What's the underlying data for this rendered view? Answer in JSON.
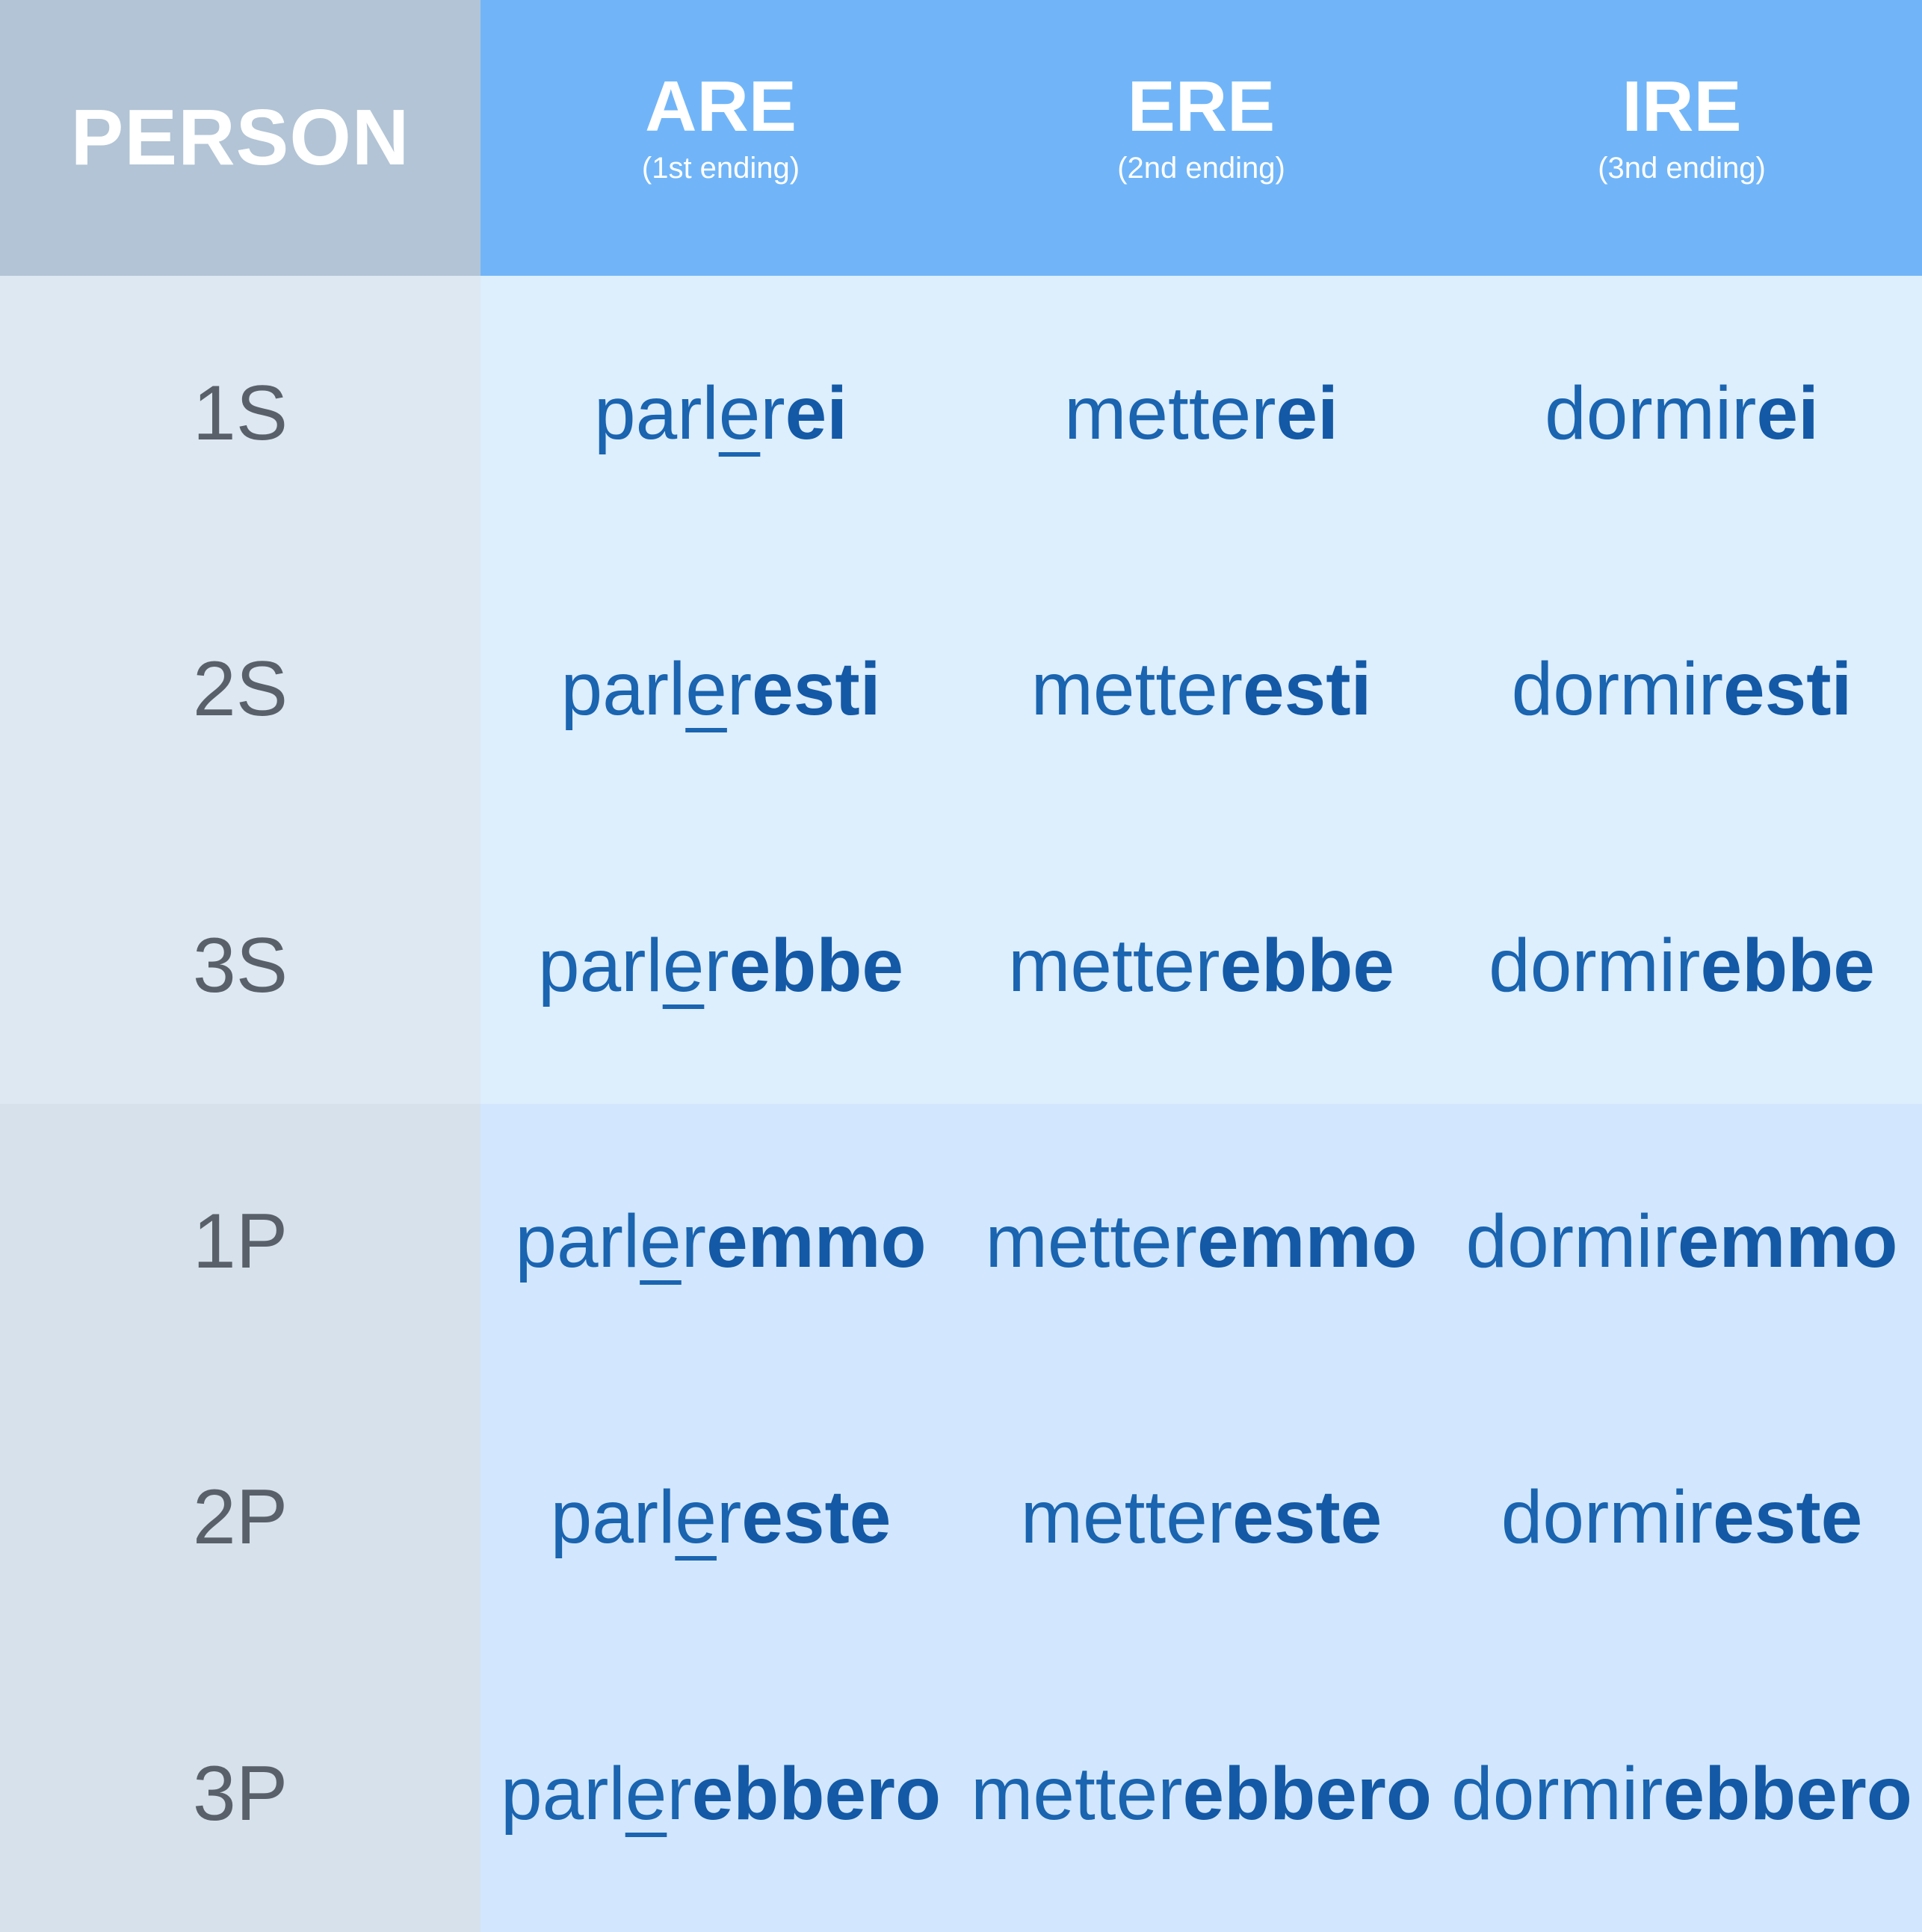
{
  "header": {
    "person": "PERSON",
    "columns": [
      {
        "title": "ARE",
        "subtitle": "(1st ending)"
      },
      {
        "title": "ERE",
        "subtitle": "(2nd ending)"
      },
      {
        "title": "IRE",
        "subtitle": "(3nd ending)"
      }
    ]
  },
  "rows": [
    {
      "person": "1S",
      "cells": [
        {
          "pre": "parl",
          "accent": "e",
          "post": "r",
          "ending": "ei"
        },
        {
          "pre": "metter",
          "accent": "",
          "post": "",
          "ending": "ei"
        },
        {
          "pre": "dormir",
          "accent": "",
          "post": "",
          "ending": "ei"
        }
      ]
    },
    {
      "person": "2S",
      "cells": [
        {
          "pre": "parl",
          "accent": "e",
          "post": "r",
          "ending": "esti"
        },
        {
          "pre": "metter",
          "accent": "",
          "post": "",
          "ending": "esti"
        },
        {
          "pre": "dormir",
          "accent": "",
          "post": "",
          "ending": "esti"
        }
      ]
    },
    {
      "person": "3S",
      "cells": [
        {
          "pre": "parl",
          "accent": "e",
          "post": "r",
          "ending": "ebbe"
        },
        {
          "pre": "metter",
          "accent": "",
          "post": "",
          "ending": "ebbe"
        },
        {
          "pre": "dormir",
          "accent": "",
          "post": "",
          "ending": "ebbe"
        }
      ]
    },
    {
      "person": "1P",
      "cells": [
        {
          "pre": "parl",
          "accent": "e",
          "post": "r",
          "ending": "emmo"
        },
        {
          "pre": "metter",
          "accent": "",
          "post": "",
          "ending": "emmo"
        },
        {
          "pre": "dormir",
          "accent": "",
          "post": "",
          "ending": "emmo"
        }
      ]
    },
    {
      "person": "2P",
      "cells": [
        {
          "pre": "parl",
          "accent": "e",
          "post": "r",
          "ending": "este"
        },
        {
          "pre": "metter",
          "accent": "",
          "post": "",
          "ending": "este"
        },
        {
          "pre": "dormir",
          "accent": "",
          "post": "",
          "ending": "este"
        }
      ]
    },
    {
      "person": "3P",
      "cells": [
        {
          "pre": "parl",
          "accent": "e",
          "post": "r",
          "ending": "ebbero"
        },
        {
          "pre": "metter",
          "accent": "",
          "post": "",
          "ending": "ebbero"
        },
        {
          "pre": "dormir",
          "accent": "",
          "post": "",
          "ending": "ebbero"
        }
      ]
    }
  ],
  "colors": {
    "header_person_bg": "#b2c4d5",
    "header_col_bg": "#71b5f8",
    "person_singular_bg": "#dde8f2",
    "person_plural_bg": "#d6e1eb",
    "cell_singular_bg": "#ddeefd",
    "cell_plural_bg": "#d2e7fd",
    "verb_text": "#1a64b0"
  }
}
